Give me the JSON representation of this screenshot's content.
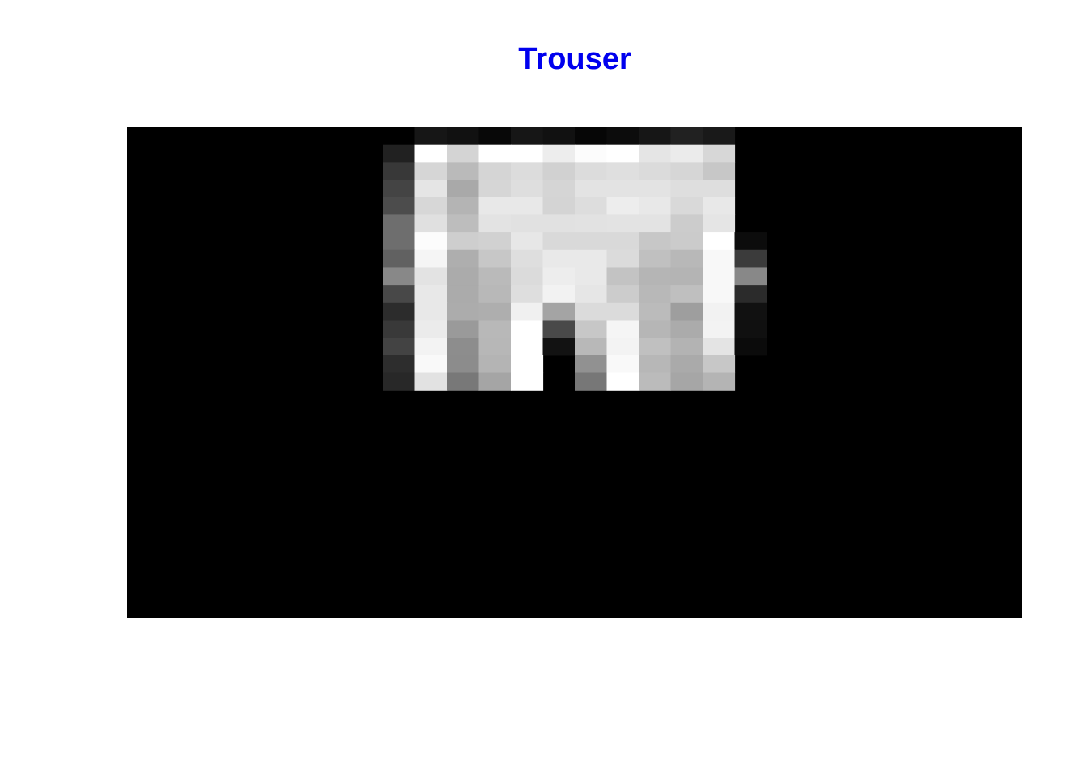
{
  "title": "Trouser",
  "title_color": "#0000ee",
  "chart_data": {
    "type": "heatmap",
    "title": "Trouser",
    "colormap": "grayscale",
    "value_range": [
      0,
      255
    ],
    "axes_visible": false,
    "rows": 28,
    "cols": 28,
    "visible_row_range": [
      0,
      14
    ],
    "visible_col_range": [
      8,
      27
    ],
    "values": [
      [
        0,
        0,
        0,
        0,
        0,
        0,
        0,
        0,
        0,
        22,
        17,
        8,
        22,
        17,
        6,
        12,
        22,
        33,
        25,
        0,
        0,
        0,
        0,
        0,
        0,
        0,
        0,
        0
      ],
      [
        0,
        0,
        0,
        0,
        0,
        0,
        0,
        0,
        33,
        255,
        212,
        255,
        255,
        237,
        252,
        255,
        229,
        235,
        215,
        0,
        0,
        0,
        0,
        0,
        0,
        0,
        0,
        0
      ],
      [
        0,
        0,
        0,
        0,
        0,
        0,
        0,
        0,
        56,
        214,
        186,
        213,
        220,
        209,
        220,
        223,
        219,
        214,
        199,
        0,
        0,
        0,
        0,
        0,
        0,
        0,
        0,
        0
      ],
      [
        0,
        0,
        0,
        0,
        0,
        0,
        0,
        0,
        68,
        229,
        169,
        214,
        222,
        213,
        227,
        227,
        227,
        222,
        222,
        0,
        0,
        0,
        0,
        0,
        0,
        0,
        0,
        0
      ],
      [
        0,
        0,
        0,
        0,
        0,
        0,
        0,
        0,
        76,
        215,
        180,
        232,
        232,
        212,
        221,
        237,
        232,
        217,
        232,
        0,
        0,
        0,
        0,
        0,
        0,
        0,
        0,
        0
      ],
      [
        0,
        0,
        0,
        0,
        0,
        0,
        0,
        0,
        110,
        224,
        189,
        227,
        225,
        225,
        226,
        227,
        227,
        204,
        229,
        0,
        0,
        0,
        0,
        0,
        0,
        0,
        0,
        0
      ],
      [
        0,
        0,
        0,
        0,
        0,
        0,
        0,
        0,
        110,
        252,
        206,
        209,
        231,
        217,
        217,
        217,
        199,
        203,
        255,
        12,
        0,
        0,
        0,
        0,
        0,
        0,
        0,
        0
      ],
      [
        0,
        0,
        0,
        0,
        0,
        0,
        0,
        0,
        97,
        245,
        174,
        199,
        222,
        233,
        233,
        219,
        192,
        184,
        248,
        59,
        0,
        0,
        0,
        0,
        0,
        0,
        0,
        0
      ],
      [
        0,
        0,
        0,
        0,
        0,
        0,
        0,
        0,
        136,
        227,
        171,
        186,
        219,
        237,
        233,
        195,
        181,
        180,
        248,
        136,
        0,
        0,
        0,
        0,
        0,
        0,
        0,
        0
      ],
      [
        0,
        0,
        0,
        0,
        0,
        0,
        0,
        0,
        72,
        232,
        171,
        184,
        222,
        242,
        230,
        204,
        184,
        191,
        248,
        43,
        0,
        0,
        0,
        0,
        0,
        0,
        0,
        0
      ],
      [
        0,
        0,
        0,
        0,
        0,
        0,
        0,
        0,
        44,
        232,
        172,
        174,
        240,
        164,
        219,
        219,
        187,
        158,
        242,
        17,
        0,
        0,
        0,
        0,
        0,
        0,
        0,
        0
      ],
      [
        0,
        0,
        0,
        0,
        0,
        0,
        0,
        0,
        57,
        235,
        154,
        184,
        255,
        73,
        199,
        245,
        182,
        171,
        243,
        16,
        0,
        0,
        0,
        0,
        0,
        0,
        0,
        0
      ],
      [
        0,
        0,
        0,
        0,
        0,
        0,
        0,
        0,
        67,
        243,
        141,
        183,
        255,
        18,
        184,
        243,
        192,
        179,
        228,
        11,
        0,
        0,
        0,
        0,
        0,
        0,
        0,
        0
      ],
      [
        0,
        0,
        0,
        0,
        0,
        0,
        0,
        0,
        45,
        249,
        140,
        180,
        255,
        0,
        145,
        249,
        183,
        170,
        199,
        0,
        0,
        0,
        0,
        0,
        0,
        0,
        0,
        0
      ],
      [
        0,
        0,
        0,
        0,
        0,
        0,
        0,
        0,
        40,
        226,
        120,
        165,
        255,
        0,
        119,
        255,
        187,
        166,
        180,
        0,
        0,
        0,
        0,
        0,
        0,
        0,
        0,
        0
      ]
    ]
  }
}
